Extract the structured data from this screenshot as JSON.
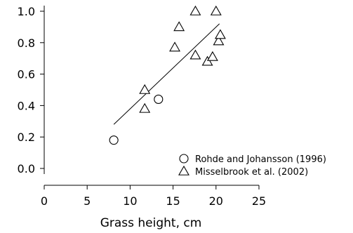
{
  "chart_data": {
    "type": "scatter",
    "title": "",
    "xlabel": "Grass height, cm",
    "ylabel": "",
    "xlim": [
      0,
      25
    ],
    "ylim": [
      0.0,
      1.0
    ],
    "x_ticks": [
      "0",
      "5",
      "10",
      "15",
      "20",
      "25"
    ],
    "y_ticks": [
      "0.0",
      "0.2",
      "0.4",
      "0.6",
      "0.8",
      "1.0"
    ],
    "grid": false,
    "legend_position": "bottom-right",
    "series": [
      {
        "name": "Rohde and Johansson (1996)",
        "marker": "circle",
        "points": [
          [
            8.1,
            0.18
          ],
          [
            13.3,
            0.44
          ]
        ]
      },
      {
        "name": "Misselbrook et al. (2002)",
        "marker": "triangle",
        "points": [
          [
            11.7,
            0.5
          ],
          [
            11.7,
            0.38
          ],
          [
            15.2,
            0.77
          ],
          [
            15.7,
            0.9
          ],
          [
            17.6,
            1.0
          ],
          [
            17.6,
            0.72
          ],
          [
            19.0,
            0.68
          ],
          [
            19.6,
            0.71
          ],
          [
            20.0,
            1.0
          ],
          [
            20.3,
            0.81
          ],
          [
            20.5,
            0.85
          ]
        ]
      }
    ],
    "trendline": {
      "x": [
        8.1,
        20.4
      ],
      "y": [
        0.28,
        0.92
      ]
    }
  }
}
